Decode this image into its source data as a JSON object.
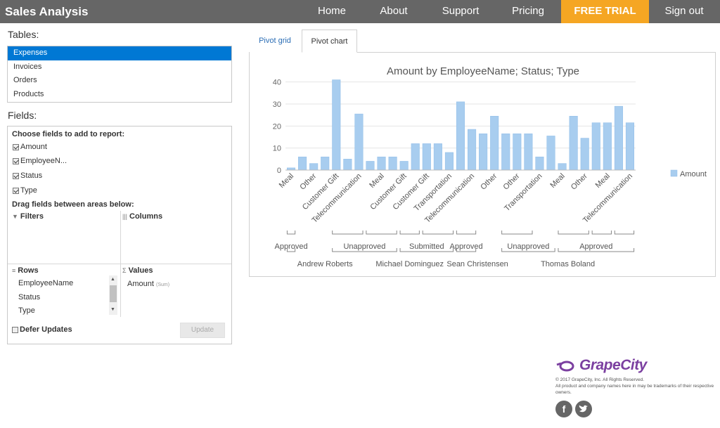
{
  "app": {
    "title": "Sales Analysis"
  },
  "nav": {
    "home": "Home",
    "about": "About",
    "support": "Support",
    "pricing": "Pricing",
    "trial": "FREE TRIAL",
    "signout": "Sign out",
    "trial_color": "#f5a623"
  },
  "tables": {
    "label": "Tables:",
    "items": [
      "Expenses",
      "Invoices",
      "Orders",
      "Products"
    ],
    "selected": "Expenses"
  },
  "fields": {
    "label": "Fields:",
    "choose_heading": "Choose fields to add to report:",
    "checks": [
      {
        "label": "Amount",
        "checked": true
      },
      {
        "label": "EmployeeN...",
        "checked": true
      },
      {
        "label": "Status",
        "checked": true
      },
      {
        "label": "Type",
        "checked": true
      }
    ],
    "drag_heading": "Drag fields between areas below:",
    "filters_title": "Filters",
    "columns_title": "Columns",
    "rows_title": "Rows",
    "values_title": "Values",
    "rows_items": [
      "EmployeeName",
      "Status",
      "Type"
    ],
    "value_item": "Amount",
    "value_sub": "(Sum)",
    "defer_label": "Defer Updates",
    "update_label": "Update"
  },
  "tabs": {
    "grid": "Pivot grid",
    "chart": "Pivot chart",
    "active": "Pivot chart"
  },
  "chart_data": {
    "type": "bar",
    "title": "Amount by EmployeeName; Status; Type",
    "ylim": [
      0,
      45
    ],
    "yticks": [
      0,
      10,
      20,
      30,
      40
    ],
    "grid": true,
    "legend_position": "right",
    "bar_color": "#a8cdef",
    "series": [
      {
        "name": "Amount",
        "values": [
          1,
          6,
          3,
          6,
          41,
          5,
          25.5,
          4,
          6,
          6,
          4,
          12,
          12,
          12,
          8,
          31,
          18.5,
          16.5,
          24.5,
          16.5,
          16.5,
          16.5,
          6,
          15.5,
          3,
          24.5,
          14.5,
          21.5,
          21.5,
          29,
          21.5
        ]
      }
    ],
    "category_labels": [
      {
        "text": "Meal",
        "index": 0
      },
      {
        "text": "Other",
        "index": 2
      },
      {
        "text": "Customer Gift",
        "index": 4
      },
      {
        "text": "Telecommunication",
        "index": 6
      },
      {
        "text": "Meal",
        "index": 8
      },
      {
        "text": "Customer Gift",
        "index": 10
      },
      {
        "text": "Customer Gift",
        "index": 12
      },
      {
        "text": "Transportation",
        "index": 14
      },
      {
        "text": "Telecommunication",
        "index": 16
      },
      {
        "text": "Other",
        "index": 18
      },
      {
        "text": "Other",
        "index": 20
      },
      {
        "text": "Transportation",
        "index": 22
      },
      {
        "text": "Meal",
        "index": 24
      },
      {
        "text": "Other",
        "index": 26
      },
      {
        "text": "Meal",
        "index": 28
      },
      {
        "text": "Telecommunication",
        "index": 30
      }
    ],
    "type_groups": [
      [
        0,
        0
      ],
      [
        4,
        6
      ],
      [
        7,
        9
      ],
      [
        10,
        11
      ],
      [
        12,
        14
      ],
      [
        15,
        16
      ],
      [
        19,
        21
      ],
      [
        24,
        26
      ],
      [
        27,
        28
      ],
      [
        29,
        30
      ]
    ],
    "status_groups": [
      {
        "label": "Approved",
        "start": 0,
        "end": 0
      },
      {
        "label": "Unapproved",
        "start": 4,
        "end": 9
      },
      {
        "label": "Submitted",
        "start": 10,
        "end": 14
      },
      {
        "label": "Approved",
        "start": 15,
        "end": 16
      },
      {
        "label": "Unapproved",
        "start": 19,
        "end": 23
      },
      {
        "label": "Approved",
        "start": 24,
        "end": 30
      }
    ],
    "employees": [
      {
        "label": "Andrew Roberts",
        "start": 0,
        "end": 6
      },
      {
        "label": "Michael Dominguez",
        "start": 7,
        "end": 14
      },
      {
        "label": "Sean Christensen",
        "start": 15,
        "end": 18
      },
      {
        "label": "Thomas Boland",
        "start": 19,
        "end": 30
      }
    ]
  },
  "footer": {
    "logo": "GrapeCity",
    "copyright": "© 2017 GrapeCity, Inc. All Rights Reserved.",
    "disclaimer": "All product and company names here in may be trademarks of their respective owners.",
    "social": [
      "facebook-icon",
      "twitter-icon"
    ]
  }
}
